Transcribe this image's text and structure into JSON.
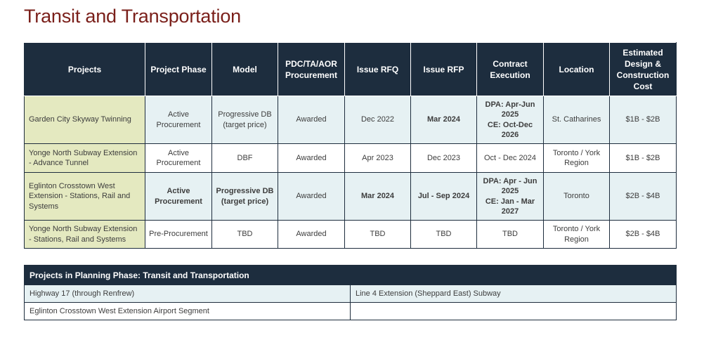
{
  "title": "Transit and Transportation",
  "main_table": {
    "headers": [
      "Projects",
      "Project Phase",
      "Model",
      "PDC/TA/AOR Procurement",
      "Issue RFQ",
      "Issue RFP",
      "Contract Execution",
      "Location",
      "Estimated Design & Construction Cost"
    ],
    "rows": [
      {
        "project": "Garden City Skyway Twinning",
        "phase": "Active Procurement",
        "model": "Progressive DB (target price)",
        "pdc": "Awarded",
        "rfq": "Dec 2022",
        "rfp": "Mar 2024",
        "contract": "DPA: Apr-Jun 2025\nCE: Oct-Dec 2026",
        "location": "St. Catharines",
        "cost": "$1B - $2B"
      },
      {
        "project": "Yonge North Subway Extension - Advance Tunnel",
        "phase": "Active Procurement",
        "model": "DBF",
        "pdc": "Awarded",
        "rfq": "Apr 2023",
        "rfp": "Dec 2023",
        "contract": "Oct - Dec 2024",
        "location": "Toronto / York Region",
        "cost": "$1B - $2B"
      },
      {
        "project": "Eglinton Crosstown West Extension - Stations, Rail and Systems",
        "phase": "Active Procurement",
        "model": "Progressive DB (target price)",
        "pdc": "Awarded",
        "rfq": "Mar 2024",
        "rfp": "Jul - Sep 2024",
        "contract": "DPA: Apr - Jun 2025\nCE: Jan - Mar 2027",
        "location": "Toronto",
        "cost": "$2B - $4B"
      },
      {
        "project": "Yonge North Subway Extension - Stations, Rail and Systems",
        "phase": "Pre-Procurement",
        "model": "TBD",
        "pdc": "Awarded",
        "rfq": "TBD",
        "rfp": "TBD",
        "contract": "TBD",
        "location": "Toronto / York Region",
        "cost": "$2B - $4B"
      }
    ]
  },
  "planning_table": {
    "header": "Projects in Planning Phase: Transit and Transportation",
    "rows": [
      [
        "Highway 17 (through Renfrew)",
        "Line 4 Extension (Sheppard East) Subway"
      ],
      [
        "Eglinton Crosstown West Extension Airport Segment",
        ""
      ]
    ]
  },
  "colors": {
    "title": "#7a1f1a",
    "header_bg": "#1d2d3e",
    "project_col_bg": "#e4e9c0",
    "row_shade": "#e6f1f3"
  }
}
